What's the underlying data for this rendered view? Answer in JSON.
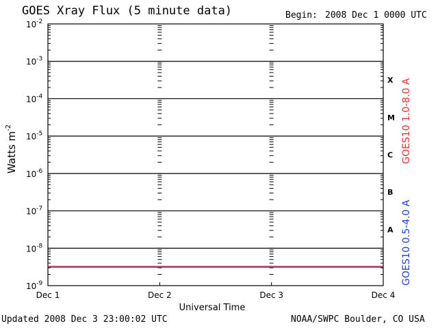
{
  "header": {
    "title": "GOES Xray Flux (5 minute data)",
    "begin_label": "Begin:",
    "begin_value": "2008 Dec 1 0000 UTC"
  },
  "footer": {
    "updated": "Updated 2008 Dec  3 23:00:02 UTC",
    "source": "NOAA/SWPC Boulder, CO USA"
  },
  "chart_data": {
    "type": "line",
    "title": "GOES Xray Flux (5 minute data)",
    "xlabel": "Universal Time",
    "ylabel": "Watts m",
    "ylabel_superscript": "-2",
    "y_scale": "log",
    "ylim": [
      1e-09,
      0.01
    ],
    "xlim_days": [
      0,
      3
    ],
    "x_ticks": [
      "Dec 1",
      "Dec 2",
      "Dec 3",
      "Dec 4"
    ],
    "y_tick_exponents": [
      -9,
      -8,
      -7,
      -6,
      -5,
      -4,
      -3,
      -2
    ],
    "y_tick_base": "10",
    "flare_classes": [
      {
        "label": "A",
        "flux": 1e-08
      },
      {
        "label": "B",
        "flux": 1e-07
      },
      {
        "label": "C",
        "flux": 1e-06
      },
      {
        "label": "M",
        "flux": 1e-05
      },
      {
        "label": "X",
        "flux": 0.0001
      }
    ],
    "grid": "horizontal lines at each decade; dashed vertical at day boundaries",
    "series": [
      {
        "name": "GOES10 1.0-8.0 A",
        "color": "#e03030",
        "x": [
          0,
          3
        ],
        "values": [
          3.3e-09,
          3.3e-09
        ]
      },
      {
        "name": "GOES10 0.5-4.0 A",
        "color": "#2040d0",
        "x": [
          0,
          3
        ],
        "values": [
          3.1e-09,
          3.1e-09
        ]
      }
    ]
  }
}
